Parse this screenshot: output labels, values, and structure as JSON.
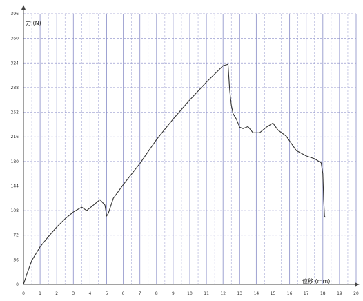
{
  "chart_data": {
    "type": "line",
    "title": "",
    "xlabel": "位移 (mm)",
    "ylabel": "力 (N)",
    "xlim": [
      0,
      20
    ],
    "ylim": [
      0,
      396
    ],
    "xticks": [
      0,
      1,
      2,
      3,
      4,
      5,
      6,
      7,
      8,
      9,
      10,
      11,
      12,
      13,
      14,
      15,
      16,
      17,
      18,
      19,
      20
    ],
    "yticks": [
      0,
      36,
      72,
      108,
      144,
      180,
      216,
      252,
      288,
      324,
      360,
      396
    ],
    "x_minor_step": 0.5,
    "grid": true,
    "legend": "none",
    "line_color": "#333333",
    "grid_color": "#8a8ec8",
    "series": [
      {
        "x": [
          0,
          0.2,
          0.5,
          1,
          1.5,
          2,
          2.5,
          3,
          3.5,
          3.8,
          4.2,
          4.6,
          4.9,
          5.0,
          5.1,
          5.4,
          6,
          7,
          8,
          9,
          10,
          11,
          11.5,
          12,
          12.3,
          12.4,
          12.5,
          12.6,
          12.8,
          13,
          13.2,
          13.5,
          13.8,
          14.2,
          14.6,
          15,
          15.3,
          15.8,
          16.4,
          17,
          17.5,
          17.9,
          18.0,
          18.05,
          18.1,
          18.15
        ],
        "y": [
          0,
          15,
          35,
          55,
          70,
          84,
          96,
          106,
          113,
          108,
          116,
          124,
          116,
          100,
          104,
          126,
          146,
          177,
          212,
          242,
          270,
          296,
          308,
          320,
          322,
          284,
          262,
          250,
          242,
          230,
          228,
          231,
          222,
          222,
          230,
          236,
          226,
          217,
          196,
          188,
          184,
          178,
          162,
          125,
          100,
          98
        ]
      }
    ]
  }
}
